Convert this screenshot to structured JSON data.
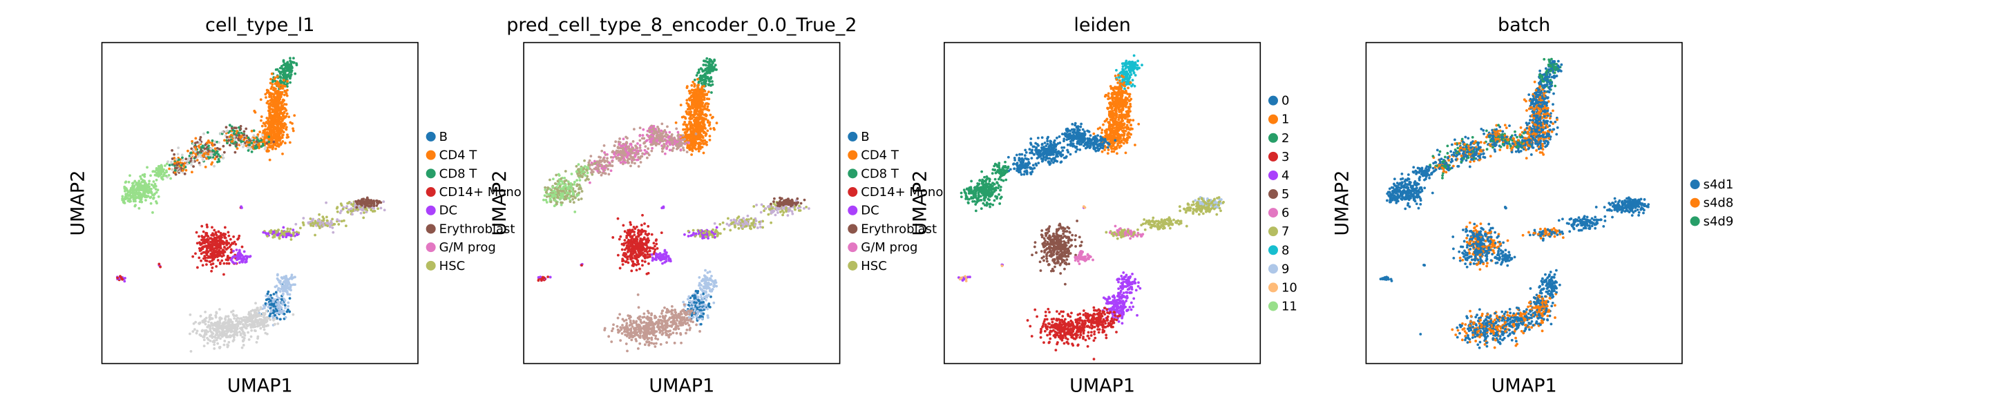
{
  "chart_data": [
    {
      "type": "scatter",
      "title": "cell_type_l1",
      "xlabel": "UMAP1",
      "ylabel": "UMAP2",
      "grid": false,
      "legend_placement": "right",
      "legend": [
        {
          "label": "B",
          "color": "#1f77b4"
        },
        {
          "label": "CD4 T",
          "color": "#ff7f0e"
        },
        {
          "label": "CD8 T",
          "color": "#279e68"
        },
        {
          "label": "CD14+ Mono",
          "color": "#d62728"
        },
        {
          "label": "DC",
          "color": "#aa40fc"
        },
        {
          "label": "Erythroblast",
          "color": "#8c564b"
        },
        {
          "label": "G/M prog",
          "color": "#e377c2"
        },
        {
          "label": "HSC",
          "color": "#b5bd61"
        }
      ]
    },
    {
      "type": "scatter",
      "title": "pred_cell_type_8_encoder_0.0_True_2",
      "xlabel": "UMAP1",
      "ylabel": "UMAP2",
      "grid": false,
      "legend_placement": "right",
      "legend": [
        {
          "label": "B",
          "color": "#1f77b4"
        },
        {
          "label": "CD4 T",
          "color": "#ff7f0e"
        },
        {
          "label": "CD8 T",
          "color": "#279e68"
        },
        {
          "label": "CD14+ Mono",
          "color": "#d62728"
        },
        {
          "label": "DC",
          "color": "#aa40fc"
        },
        {
          "label": "Erythroblast",
          "color": "#8c564b"
        },
        {
          "label": "G/M prog",
          "color": "#e377c2"
        },
        {
          "label": "HSC",
          "color": "#b5bd61"
        }
      ]
    },
    {
      "type": "scatter",
      "title": "leiden",
      "xlabel": "UMAP1",
      "ylabel": "UMAP2",
      "grid": false,
      "legend_placement": "right",
      "legend": [
        {
          "label": "0",
          "color": "#1f77b4"
        },
        {
          "label": "1",
          "color": "#ff7f0e"
        },
        {
          "label": "2",
          "color": "#279e68"
        },
        {
          "label": "3",
          "color": "#d62728"
        },
        {
          "label": "4",
          "color": "#aa40fc"
        },
        {
          "label": "5",
          "color": "#8c564b"
        },
        {
          "label": "6",
          "color": "#e377c2"
        },
        {
          "label": "7",
          "color": "#b5bd61"
        },
        {
          "label": "8",
          "color": "#17becf"
        },
        {
          "label": "9",
          "color": "#aec7e8"
        },
        {
          "label": "10",
          "color": "#ffbb78"
        },
        {
          "label": "11",
          "color": "#98df8a"
        }
      ]
    },
    {
      "type": "scatter",
      "title": "batch",
      "xlabel": "UMAP1",
      "ylabel": "UMAP2",
      "grid": false,
      "legend_placement": "right",
      "legend": [
        {
          "label": "s4d1",
          "color": "#1f77b4"
        },
        {
          "label": "s4d8",
          "color": "#ff7f0e"
        },
        {
          "label": "s4d9",
          "color": "#279e68"
        }
      ]
    }
  ]
}
